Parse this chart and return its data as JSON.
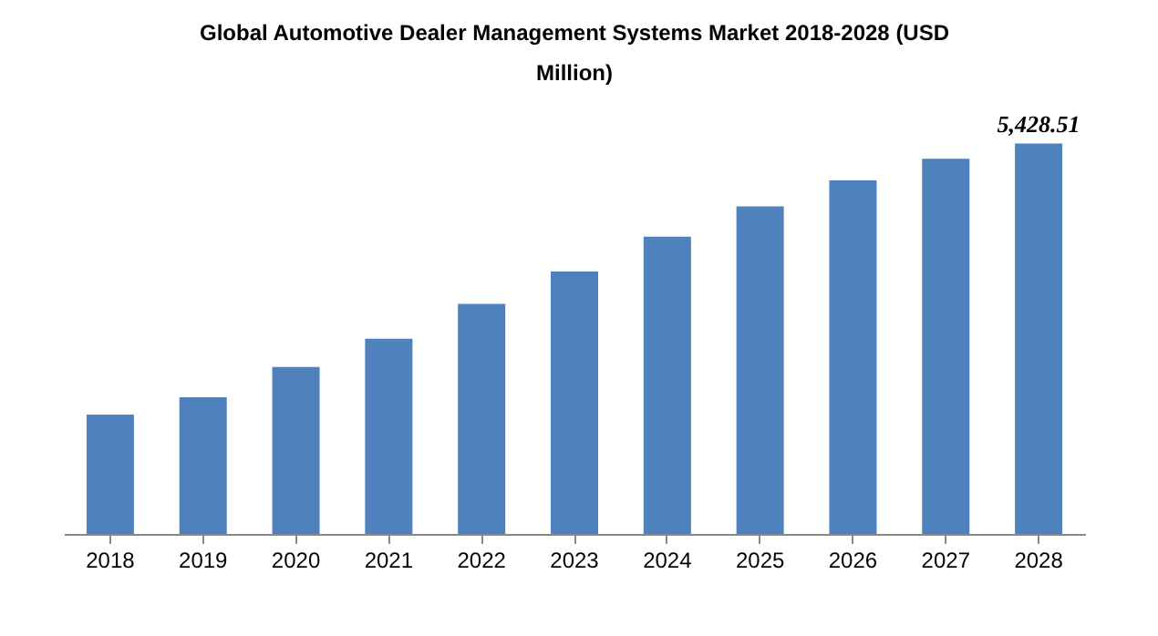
{
  "chart_data": {
    "type": "bar",
    "title": [
      "Global Automotive Dealer Management Systems Market 2018-2028 (USD",
      "Million)"
    ],
    "categories": [
      "2018",
      "2019",
      "2020",
      "2021",
      "2022",
      "2023",
      "2024",
      "2025",
      "2026",
      "2027",
      "2028"
    ],
    "values": [
      1659,
      1900,
      2322,
      2714,
      3197,
      3649,
      4132,
      4554,
      4916,
      5217,
      5428.51
    ],
    "value_labels": [
      null,
      null,
      null,
      null,
      null,
      null,
      null,
      null,
      null,
      null,
      "5,428.51"
    ],
    "color": "#4f81bd",
    "grid": false
  }
}
